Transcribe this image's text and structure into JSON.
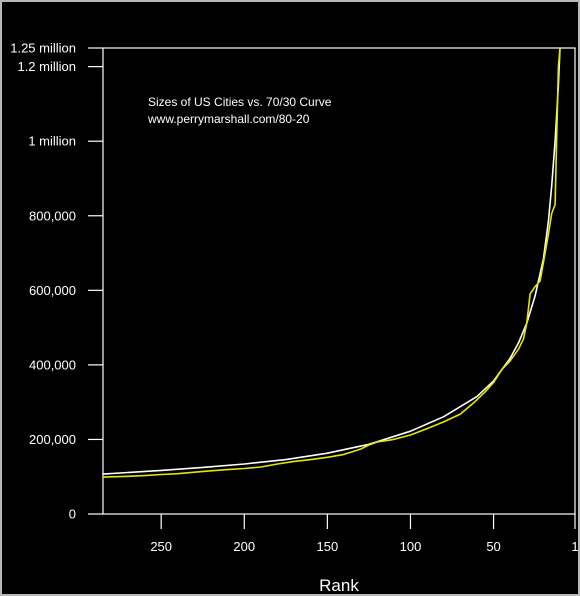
{
  "chart_data": {
    "type": "line",
    "title": "Sizes of US Cities vs. 70/30 Curve",
    "subtitle": "www.perrymarshall.com/80-20",
    "xlabel": "Rank",
    "ylabel": "",
    "xlim": [
      285,
      1
    ],
    "ylim": [
      0,
      1250000
    ],
    "x_reversed": true,
    "grid": false,
    "x_ticks": [
      {
        "value": 250,
        "label": "250"
      },
      {
        "value": 200,
        "label": "200"
      },
      {
        "value": 150,
        "label": "150"
      },
      {
        "value": 100,
        "label": "100"
      },
      {
        "value": 50,
        "label": "50"
      },
      {
        "value": 1,
        "label": "1"
      }
    ],
    "y_ticks": [
      {
        "value": 0,
        "label": "0"
      },
      {
        "value": 200000,
        "label": "200,000"
      },
      {
        "value": 400000,
        "label": "400,000"
      },
      {
        "value": 600000,
        "label": "600,000"
      },
      {
        "value": 800000,
        "label": "800,000"
      },
      {
        "value": 1000000,
        "label": "1 million"
      },
      {
        "value": 1200000,
        "label": "1.2 million"
      },
      {
        "value": 1250000,
        "label": "1.25 million"
      }
    ],
    "series": [
      {
        "color": "#ffffff",
        "values": [
          [
            285,
            107000
          ],
          [
            250,
            117000
          ],
          [
            225,
            125000
          ],
          [
            200,
            134000
          ],
          [
            175,
            146000
          ],
          [
            150,
            163000
          ],
          [
            125,
            187000
          ],
          [
            100,
            222000
          ],
          [
            80,
            261000
          ],
          [
            60,
            315000
          ],
          [
            50,
            357000
          ],
          [
            40,
            418000
          ],
          [
            35,
            459000
          ],
          [
            30,
            512000
          ],
          [
            25,
            585000
          ],
          [
            20,
            684000
          ],
          [
            17,
            785000
          ],
          [
            15,
            880000
          ],
          [
            13,
            1000000
          ],
          [
            11,
            1150000
          ],
          [
            10,
            1250000
          ]
        ]
      },
      {
        "color": "#e6e600",
        "values": [
          [
            285,
            99000
          ],
          [
            270,
            101000
          ],
          [
            260,
            103000
          ],
          [
            250,
            106000
          ],
          [
            240,
            108000
          ],
          [
            230,
            112000
          ],
          [
            220,
            116000
          ],
          [
            210,
            119000
          ],
          [
            200,
            122000
          ],
          [
            190,
            126000
          ],
          [
            180,
            134000
          ],
          [
            170,
            141000
          ],
          [
            160,
            146000
          ],
          [
            150,
            152000
          ],
          [
            140,
            160000
          ],
          [
            130,
            174000
          ],
          [
            125,
            185000
          ],
          [
            120,
            193000
          ],
          [
            110,
            200000
          ],
          [
            100,
            212000
          ],
          [
            90,
            229000
          ],
          [
            80,
            247000
          ],
          [
            70,
            268000
          ],
          [
            62,
            298000
          ],
          [
            55,
            328000
          ],
          [
            50,
            353000
          ],
          [
            45,
            388000
          ],
          [
            40,
            411000
          ],
          [
            35,
            442000
          ],
          [
            32,
            470000
          ],
          [
            30,
            512000
          ],
          [
            28,
            590000
          ],
          [
            25,
            610000
          ],
          [
            22,
            625000
          ],
          [
            19,
            700000
          ],
          [
            17,
            750000
          ],
          [
            15,
            806000
          ],
          [
            13,
            830000
          ],
          [
            11,
            1200000
          ],
          [
            10,
            1250000
          ]
        ]
      }
    ]
  }
}
